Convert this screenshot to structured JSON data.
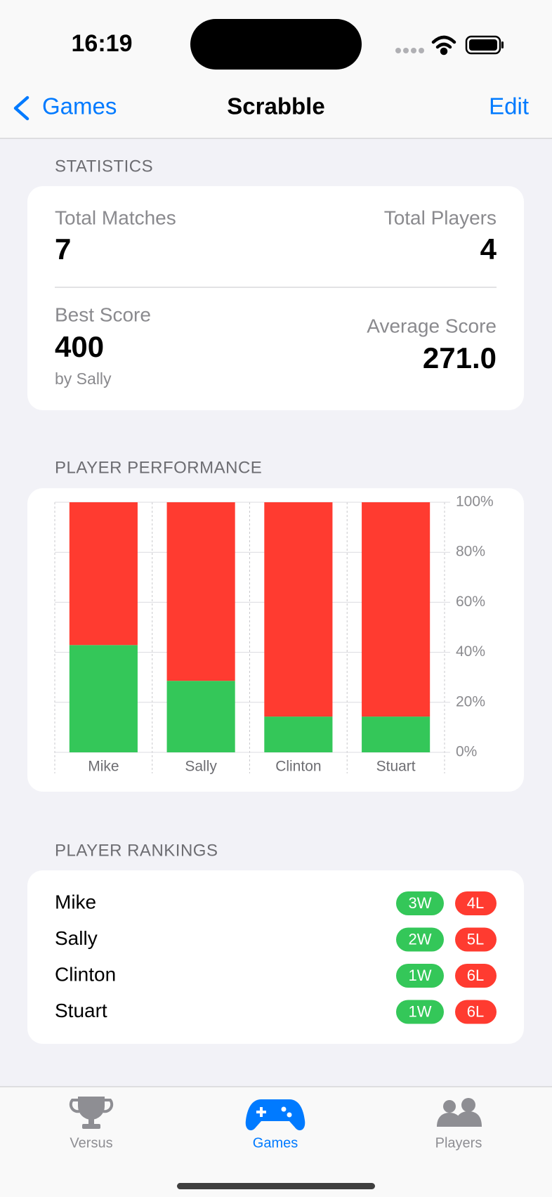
{
  "status_bar": {
    "time": "16:19"
  },
  "nav": {
    "back": "Games",
    "title": "Scrabble",
    "action": "Edit"
  },
  "statistics": {
    "header": "STATISTICS",
    "total_matches_label": "Total Matches",
    "total_matches": 7,
    "total_players_label": "Total Players",
    "total_players": 4,
    "best_score_label": "Best Score",
    "best_score": 400,
    "best_score_by": "by Sally",
    "average_score_label": "Average Score",
    "average_score": "271.0"
  },
  "chart_data": {
    "type": "stacked-bar",
    "title": "PLAYER PERFORMANCE",
    "categories": [
      "Mike",
      "Sally",
      "Clinton",
      "Stuart"
    ],
    "series": [
      {
        "color": "#34c759",
        "values": [
          42.9,
          28.6,
          14.3,
          14.3
        ]
      },
      {
        "color": "#ff3b30",
        "values": [
          57.1,
          71.4,
          85.7,
          85.7
        ]
      }
    ],
    "ylim": [
      0,
      100
    ],
    "yticks": [
      {
        "value": 0,
        "label": "0%"
      },
      {
        "value": 20,
        "label": "20%"
      },
      {
        "value": 40,
        "label": "40%"
      },
      {
        "value": 60,
        "label": "60%"
      },
      {
        "value": 80,
        "label": "80%"
      },
      {
        "value": 100,
        "label": "100%"
      }
    ],
    "grid": true
  },
  "rankings": {
    "header": "PLAYER RANKINGS",
    "rows": [
      {
        "name": "Mike",
        "wins": "3W",
        "losses": "4L"
      },
      {
        "name": "Sally",
        "wins": "2W",
        "losses": "5L"
      },
      {
        "name": "Clinton",
        "wins": "1W",
        "losses": "6L"
      },
      {
        "name": "Stuart",
        "wins": "1W",
        "losses": "6L"
      }
    ]
  },
  "tab_bar": {
    "tabs": [
      "Versus",
      "Games",
      "Players"
    ]
  }
}
